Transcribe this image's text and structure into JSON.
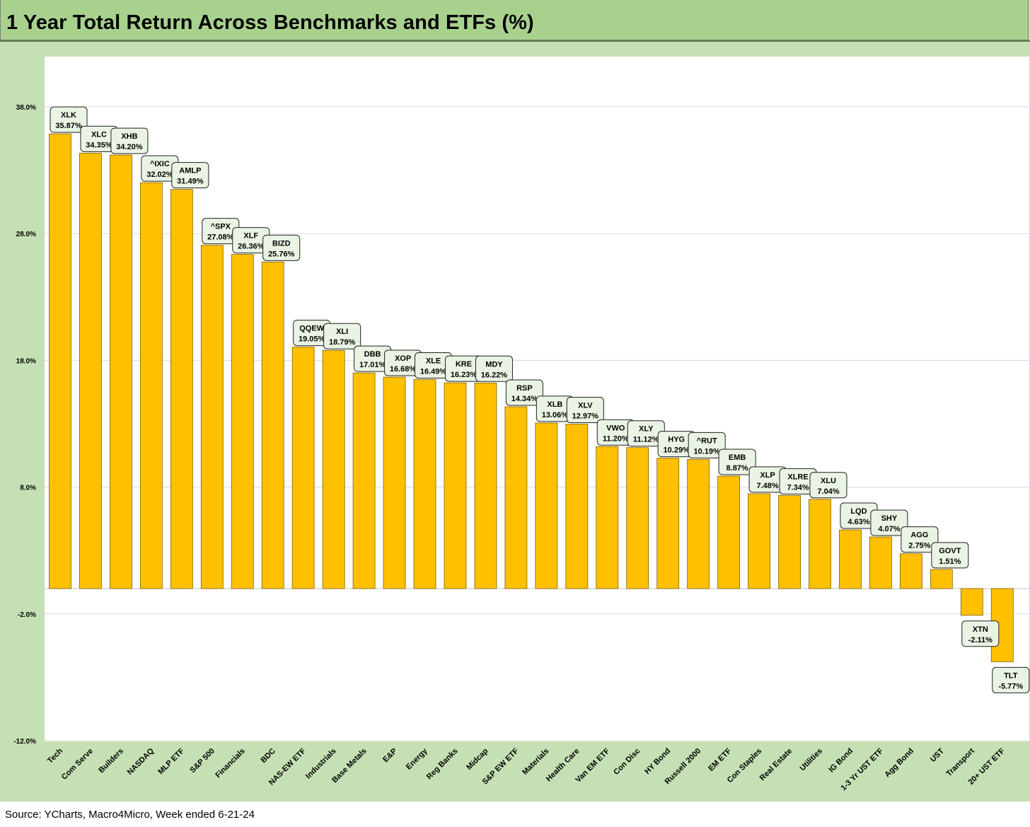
{
  "title": "1 Year Total Return Across Benchmarks and ETFs (%)",
  "source": "Source: YCharts, Macro4Micro, Week ended 6-21-24",
  "colors": {
    "bar": "#ffc000",
    "bar_border": "#7f6000",
    "frame": "#c5e0b4",
    "title_bar": "#a9d18e",
    "label_fill": "#eaf4e4"
  },
  "chart_data": {
    "type": "bar",
    "title": "1 Year Total Return Across Benchmarks and ETFs (%)",
    "xlabel": "",
    "ylabel": "",
    "ylim": [
      -12.0,
      38.0
    ],
    "yticks": [
      -12.0,
      -2.0,
      8.0,
      18.0,
      28.0,
      38.0
    ],
    "ytick_labels": [
      "-12.0%",
      "-2.0%",
      "8.0%",
      "18.0%",
      "28.0%",
      "38.0%"
    ],
    "grid": true,
    "legend": "none",
    "categories": [
      "Tech",
      "Com Serve",
      "Builders",
      "NASDAQ",
      "MLP ETF",
      "S&P 500",
      "Financials",
      "BDC",
      "NAS-EW ETF",
      "Industrials",
      "Base Metals",
      "E&P",
      "Energy",
      "Reg Banks",
      "Midcap",
      "S&P EW ETF",
      "Materials",
      "Health Care",
      "Van EM ETF",
      "Con Disc",
      "HY Bond",
      "Russell 2000",
      "EM ETF",
      "Con Staples",
      "Real Estate",
      "Utilities",
      "IG Bond",
      "1-3 Yr UST ETF",
      "Agg Bond",
      "UST",
      "Transport",
      "20+ UST ETF"
    ],
    "tickers": [
      "XLK",
      "XLC",
      "XHB",
      "^IXIC",
      "AMLP",
      "^SPX",
      "XLF",
      "BIZD",
      "QQEW",
      "XLI",
      "DBB",
      "XOP",
      "XLE",
      "KRE",
      "MDY",
      "RSP",
      "XLB",
      "XLV",
      "VWO",
      "XLY",
      "HYG",
      "^RUT",
      "EMB",
      "XLP",
      "XLRE",
      "XLU",
      "LQD",
      "SHY",
      "AGG",
      "GOVT",
      "XTN",
      "TLT"
    ],
    "values": [
      35.87,
      34.35,
      34.2,
      32.02,
      31.49,
      27.08,
      26.36,
      25.76,
      19.05,
      18.79,
      17.01,
      16.68,
      16.49,
      16.23,
      16.22,
      14.34,
      13.06,
      12.97,
      11.2,
      11.12,
      10.29,
      10.19,
      8.87,
      7.48,
      7.34,
      7.04,
      4.63,
      4.07,
      2.75,
      1.51,
      -2.11,
      -5.77
    ],
    "value_labels": [
      "35.87%",
      "34.35%",
      "34.20%",
      "32.02%",
      "31.49%",
      "27.08%",
      "26.36%",
      "25.76%",
      "19.05%",
      "18.79%",
      "17.01%",
      "16.68%",
      "16.49%",
      "16.23%",
      "16.22%",
      "14.34%",
      "13.06%",
      "12.97%",
      "11.20%",
      "11.12%",
      "10.29%",
      "10.19%",
      "8.87%",
      "7.48%",
      "7.34%",
      "7.04%",
      "4.63%",
      "4.07%",
      "2.75%",
      "1.51%",
      "-2.11%",
      "-5.77%"
    ]
  }
}
